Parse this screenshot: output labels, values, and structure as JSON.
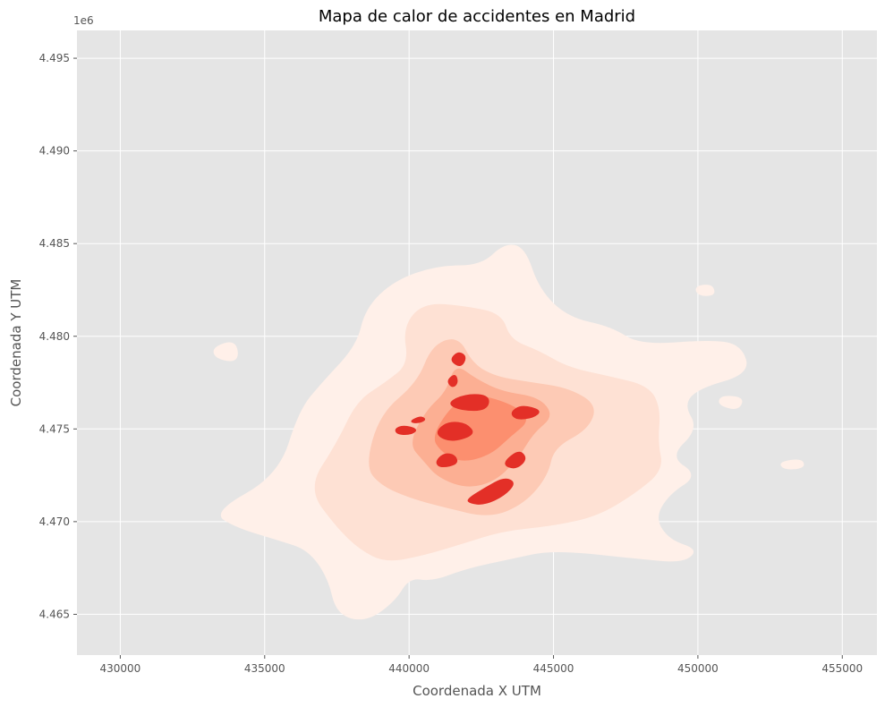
{
  "chart_data": {
    "type": "heatmap",
    "title": "Mapa de calor de accidentes en Madrid",
    "xlabel": "Coordenada X UTM",
    "ylabel": "Coordenada Y UTM",
    "y_offset_label": "1e6",
    "xlim": [
      428500,
      456200
    ],
    "ylim": [
      4462800,
      4496500
    ],
    "x_ticks": [
      430000,
      435000,
      440000,
      445000,
      450000,
      455000
    ],
    "x_tick_labels": [
      "430000",
      "435000",
      "440000",
      "445000",
      "450000",
      "455000"
    ],
    "y_ticks": [
      4465000,
      4470000,
      4475000,
      4480000,
      4485000,
      4490000,
      4495000
    ],
    "y_tick_labels": [
      "4.465",
      "4.470",
      "4.475",
      "4.480",
      "4.485",
      "4.490",
      "4.495"
    ],
    "grid": true,
    "colormap": [
      "#fff0e9",
      "#fee1d4",
      "#fdcab5",
      "#fcaf93",
      "#fc8f6f",
      "#e32f27"
    ],
    "colors": {
      "plot_background": "#e5e5e5",
      "grid": "#ffffff",
      "hotspot": "#e32f27"
    },
    "density_regions": [
      {
        "level": 1,
        "outline": [
          [
            433200,
            4470500
          ],
          [
            435500,
            4472500
          ],
          [
            436200,
            4476000
          ],
          [
            437000,
            4477500
          ],
          [
            438200,
            4479500
          ],
          [
            438500,
            4481500
          ],
          [
            439500,
            4483000
          ],
          [
            441000,
            4483800
          ],
          [
            442500,
            4483800
          ],
          [
            443300,
            4485000
          ],
          [
            444000,
            4484800
          ],
          [
            444500,
            4482500
          ],
          [
            445500,
            4481000
          ],
          [
            447000,
            4480500
          ],
          [
            448000,
            4479500
          ],
          [
            450500,
            4479800
          ],
          [
            451500,
            4479500
          ],
          [
            451800,
            4478000
          ],
          [
            450000,
            4477200
          ],
          [
            449500,
            4476300
          ],
          [
            450000,
            4475000
          ],
          [
            449000,
            4473500
          ],
          [
            450000,
            4472500
          ],
          [
            449000,
            4471500
          ],
          [
            448500,
            4470200
          ],
          [
            449000,
            4469000
          ],
          [
            450000,
            4468500
          ],
          [
            449500,
            4467800
          ],
          [
            448000,
            4468000
          ],
          [
            445000,
            4468500
          ],
          [
            443500,
            4468000
          ],
          [
            442000,
            4467500
          ],
          [
            440800,
            4466800
          ],
          [
            440000,
            4467000
          ],
          [
            439500,
            4465700
          ],
          [
            438500,
            4464600
          ],
          [
            437500,
            4465000
          ],
          [
            437200,
            4467000
          ],
          [
            436500,
            4468500
          ],
          [
            435500,
            4469000
          ],
          [
            434000,
            4469700
          ]
        ]
      },
      {
        "level": 1,
        "outline": [
          [
            433200,
            4479400
          ],
          [
            434000,
            4479800
          ],
          [
            434100,
            4478600
          ],
          [
            433300,
            4478800
          ]
        ]
      },
      {
        "level": 1,
        "outline": [
          [
            450800,
            4476800
          ],
          [
            451600,
            4476700
          ],
          [
            451400,
            4476000
          ],
          [
            450700,
            4476300
          ]
        ]
      },
      {
        "level": 1,
        "outline": [
          [
            452800,
            4473200
          ],
          [
            453600,
            4473400
          ],
          [
            453700,
            4472900
          ],
          [
            453000,
            4472800
          ]
        ]
      },
      {
        "level": 1,
        "outline": [
          [
            449900,
            4482700
          ],
          [
            450500,
            4482800
          ],
          [
            450600,
            4482200
          ],
          [
            450000,
            4482200
          ]
        ]
      },
      {
        "level": 2,
        "outline": [
          [
            436500,
            4471800
          ],
          [
            437500,
            4474200
          ],
          [
            438200,
            4476500
          ],
          [
            439200,
            4477500
          ],
          [
            440000,
            4478500
          ],
          [
            439800,
            4480500
          ],
          [
            440500,
            4481800
          ],
          [
            442000,
            4481600
          ],
          [
            443200,
            4481200
          ],
          [
            443500,
            4479800
          ],
          [
            444500,
            4479200
          ],
          [
            445500,
            4478300
          ],
          [
            447000,
            4477800
          ],
          [
            448300,
            4477300
          ],
          [
            448700,
            4476100
          ],
          [
            448600,
            4474300
          ],
          [
            448800,
            4472800
          ],
          [
            447800,
            4471500
          ],
          [
            446500,
            4470300
          ],
          [
            445000,
            4469800
          ],
          [
            443200,
            4469500
          ],
          [
            441800,
            4468800
          ],
          [
            440500,
            4468200
          ],
          [
            439200,
            4467800
          ],
          [
            438300,
            4468500
          ],
          [
            437500,
            4469700
          ]
        ]
      },
      {
        "level": 3,
        "outline": [
          [
            438500,
            4473000
          ],
          [
            439000,
            4475800
          ],
          [
            440300,
            4477500
          ],
          [
            440800,
            4479500
          ],
          [
            441700,
            4480000
          ],
          [
            442200,
            4478500
          ],
          [
            443000,
            4477800
          ],
          [
            444200,
            4477500
          ],
          [
            445500,
            4477200
          ],
          [
            446500,
            4476300
          ],
          [
            446200,
            4475000
          ],
          [
            445000,
            4474000
          ],
          [
            444800,
            4472500
          ],
          [
            444000,
            4471000
          ],
          [
            442800,
            4470200
          ],
          [
            441200,
            4470800
          ],
          [
            440000,
            4471300
          ],
          [
            439000,
            4472000
          ]
        ]
      },
      {
        "level": 4,
        "outline": [
          [
            440000,
            4474200
          ],
          [
            440600,
            4476000
          ],
          [
            441300,
            4477000
          ],
          [
            441600,
            4478500
          ],
          [
            442300,
            4477700
          ],
          [
            443200,
            4477000
          ],
          [
            444500,
            4476700
          ],
          [
            445000,
            4475700
          ],
          [
            444300,
            4474800
          ],
          [
            443800,
            4473500
          ],
          [
            443000,
            4472200
          ],
          [
            442000,
            4471800
          ],
          [
            441000,
            4472400
          ],
          [
            440500,
            4473300
          ]
        ]
      },
      {
        "level": 5,
        "outline": [
          [
            440800,
            4474600
          ],
          [
            441500,
            4476300
          ],
          [
            442300,
            4476900
          ],
          [
            443600,
            4476300
          ],
          [
            444200,
            4475500
          ],
          [
            443500,
            4474600
          ],
          [
            442800,
            4473600
          ],
          [
            441800,
            4473200
          ],
          [
            441100,
            4473800
          ]
        ]
      },
      {
        "level": 6,
        "outline": [
          [
            441300,
            4476400
          ],
          [
            442000,
            4476900
          ],
          [
            442800,
            4476800
          ],
          [
            442700,
            4476000
          ],
          [
            441800,
            4476000
          ]
        ]
      },
      {
        "level": 6,
        "outline": [
          [
            441400,
            4478700
          ],
          [
            441700,
            4479200
          ],
          [
            442000,
            4478900
          ],
          [
            441800,
            4478300
          ]
        ]
      },
      {
        "level": 6,
        "outline": [
          [
            441300,
            4477600
          ],
          [
            441600,
            4478000
          ],
          [
            441700,
            4477500
          ],
          [
            441500,
            4477200
          ]
        ]
      },
      {
        "level": 6,
        "outline": [
          [
            441000,
            4475000
          ],
          [
            441400,
            4475400
          ],
          [
            442000,
            4475300
          ],
          [
            442300,
            4474700
          ],
          [
            441500,
            4474300
          ],
          [
            441000,
            4474600
          ]
        ]
      },
      {
        "level": 6,
        "outline": [
          [
            443500,
            4475900
          ],
          [
            443900,
            4476300
          ],
          [
            444600,
            4476000
          ],
          [
            444300,
            4475600
          ],
          [
            443700,
            4475500
          ]
        ]
      },
      {
        "level": 6,
        "outline": [
          [
            439500,
            4475000
          ],
          [
            439800,
            4475200
          ],
          [
            440300,
            4475000
          ],
          [
            440100,
            4474700
          ],
          [
            439600,
            4474700
          ]
        ]
      },
      {
        "level": 6,
        "outline": [
          [
            440000,
            4475400
          ],
          [
            440400,
            4475700
          ],
          [
            440600,
            4475500
          ],
          [
            440300,
            4475300
          ]
        ]
      },
      {
        "level": 6,
        "outline": [
          [
            440900,
            4473200
          ],
          [
            441200,
            4473700
          ],
          [
            441600,
            4473600
          ],
          [
            441700,
            4473100
          ],
          [
            441100,
            4472900
          ]
        ]
      },
      {
        "level": 6,
        "outline": [
          [
            443200,
            4473100
          ],
          [
            443800,
            4473900
          ],
          [
            444100,
            4473400
          ],
          [
            443700,
            4472800
          ]
        ]
      },
      {
        "level": 6,
        "outline": [
          [
            442000,
            4471200
          ],
          [
            442600,
            4471800
          ],
          [
            443300,
            4472400
          ],
          [
            443700,
            4472100
          ],
          [
            443300,
            4471400
          ],
          [
            442600,
            4470900
          ],
          [
            442100,
            4471000
          ]
        ]
      }
    ]
  }
}
